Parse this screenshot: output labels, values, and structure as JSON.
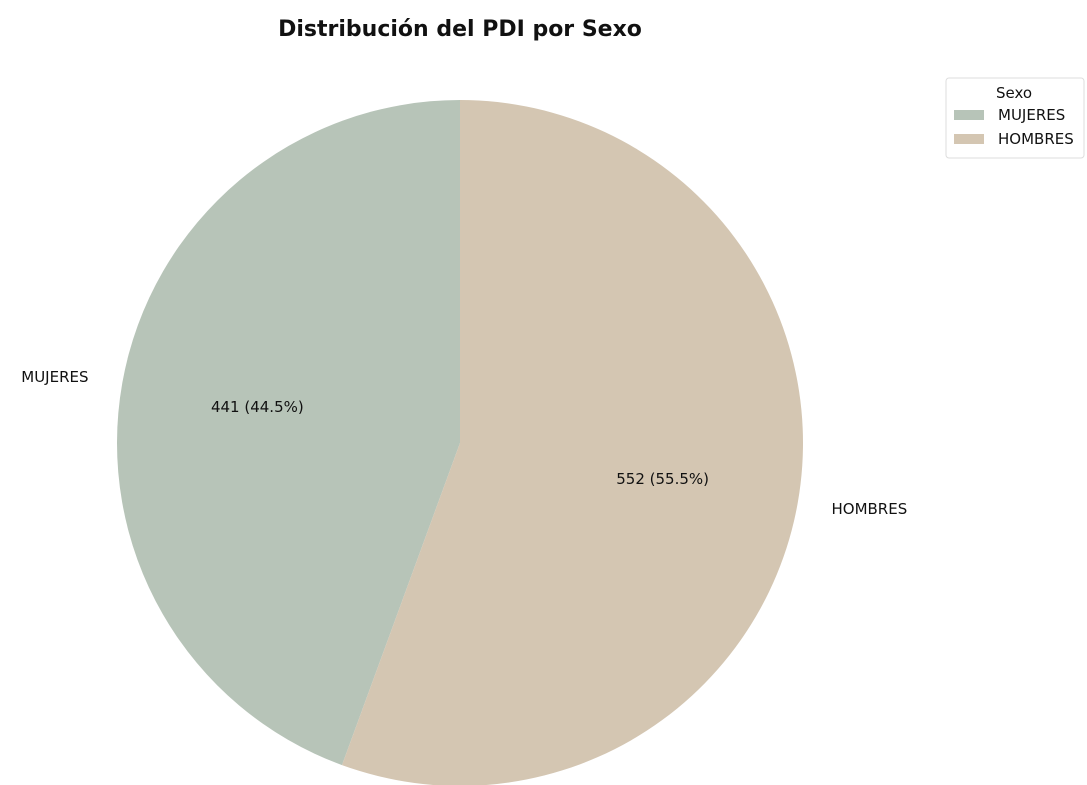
{
  "chart_data": {
    "type": "pie",
    "title": "Distribución del PDI por Sexo",
    "categories": [
      "MUJERES",
      "HOMBRES"
    ],
    "values": [
      441,
      552
    ],
    "percent_labels": [
      "441 (44.5%)",
      "552 (55.5%)"
    ],
    "colors": [
      "#b7c4b8",
      "#d4c6b2"
    ],
    "start_angle_deg": 90,
    "direction": "counterclockwise",
    "legend": {
      "title": "Sexo",
      "placement": "top-right",
      "entries": [
        "MUJERES",
        "HOMBRES"
      ]
    }
  }
}
